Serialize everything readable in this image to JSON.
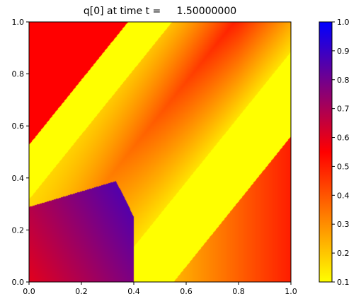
{
  "chart_data": {
    "type": "heatmap",
    "title": "q[0] at time t =     1.50000000",
    "xlabel": "",
    "ylabel": "",
    "xlim": [
      0,
      1
    ],
    "ylim": [
      0,
      1
    ],
    "xticks": [
      "0.0",
      "0.2",
      "0.4",
      "0.6",
      "0.8",
      "1.0"
    ],
    "yticks": [
      "0.0",
      "0.2",
      "0.4",
      "0.6",
      "0.8",
      "1.0"
    ],
    "grid": false,
    "colorbar": {
      "range": [
        0.1,
        1.0
      ],
      "ticks": [
        "0.1",
        "0.2",
        "0.3",
        "0.4",
        "0.5",
        "0.6",
        "0.7",
        "0.8",
        "0.9",
        "1.0"
      ],
      "stops": [
        {
          "value": 0.1,
          "color": "#ffff00"
        },
        {
          "value": 0.55,
          "color": "#ff0000"
        },
        {
          "value": 1.0,
          "color": "#0000ff"
        }
      ]
    },
    "field": {
      "description_values": {
        "yellow_band_value": 0.1,
        "upper_left_corner_value": 0.55,
        "central_band_min": 0.15,
        "central_band_max": 0.5,
        "lower_right_band_min": 0.2,
        "lower_right_band_max": 0.5,
        "lower_left_blob_min": 0.6,
        "lower_left_blob_max": 0.85
      }
    }
  }
}
